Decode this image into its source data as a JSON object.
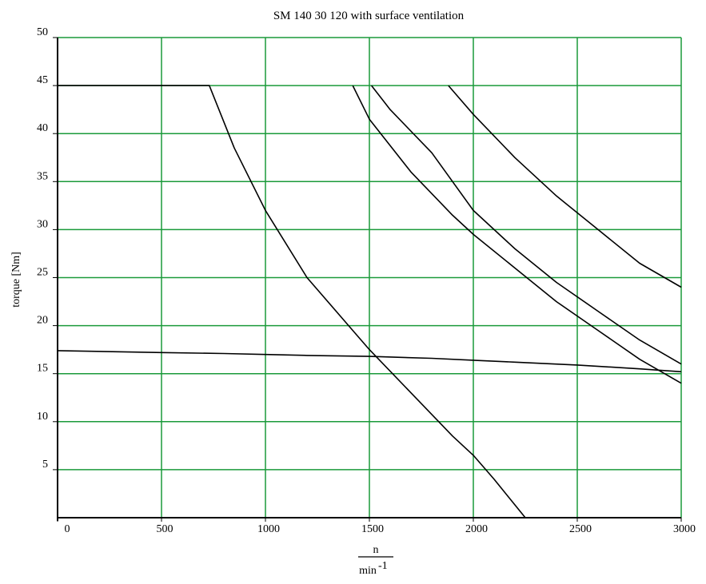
{
  "chart_data": {
    "type": "line",
    "title": "SM 140 30 120 with surface ventilation",
    "ylabel": "torque [Nm]",
    "xlabel_numerator": "n",
    "xlabel_denominator": "min",
    "xlabel_exponent": "-1",
    "xlim": [
      0,
      3000
    ],
    "ylim": [
      0,
      50
    ],
    "xticks": [
      0,
      500,
      1000,
      1500,
      2000,
      2500,
      3000
    ],
    "yticks": [
      5,
      10,
      15,
      20,
      25,
      30,
      35,
      40,
      45,
      50
    ],
    "xtick_labels": [
      "0",
      "500",
      "1000",
      "1500",
      "2000",
      "2500",
      "3000"
    ],
    "ytick_labels": [
      "5",
      "10",
      "15",
      "20",
      "25",
      "30",
      "35",
      "40",
      "45",
      "50"
    ],
    "grid": true,
    "colors": {
      "grid": "#1a9a3a",
      "axis": "#000000",
      "curve": "#000000"
    },
    "series": [
      {
        "x": [
          0,
          500,
          800,
          1000,
          1200,
          1500,
          1800,
          2000,
          2200,
          2500,
          2800,
          3000
        ],
        "y": [
          17.4,
          17.2,
          17.1,
          17.0,
          16.9,
          16.8,
          16.6,
          16.4,
          16.2,
          15.9,
          15.5,
          15.2
        ]
      },
      {
        "x": [
          0,
          730,
          850,
          1000,
          1200,
          1400,
          1500,
          1700,
          1900,
          2000,
          2100,
          2250
        ],
        "y": [
          45,
          45,
          38.5,
          32,
          25,
          20,
          17.5,
          13,
          8.5,
          6.5,
          4,
          0
        ]
      },
      {
        "x": [
          1420,
          1500,
          1700,
          1900,
          2000,
          2200,
          2400,
          2600,
          2800,
          3000
        ],
        "y": [
          45,
          41.5,
          36,
          31.5,
          29.5,
          26,
          22.5,
          19.5,
          16.5,
          14
        ]
      },
      {
        "x": [
          1510,
          1600,
          1800,
          2000,
          2200,
          2400,
          2600,
          2800,
          3000
        ],
        "y": [
          45,
          42.5,
          38,
          32,
          28,
          24.5,
          21.5,
          18.5,
          16
        ]
      },
      {
        "x": [
          1880,
          2000,
          2200,
          2400,
          2600,
          2800,
          3000
        ],
        "y": [
          45,
          42,
          37.5,
          33.5,
          30,
          26.5,
          24
        ]
      }
    ]
  }
}
